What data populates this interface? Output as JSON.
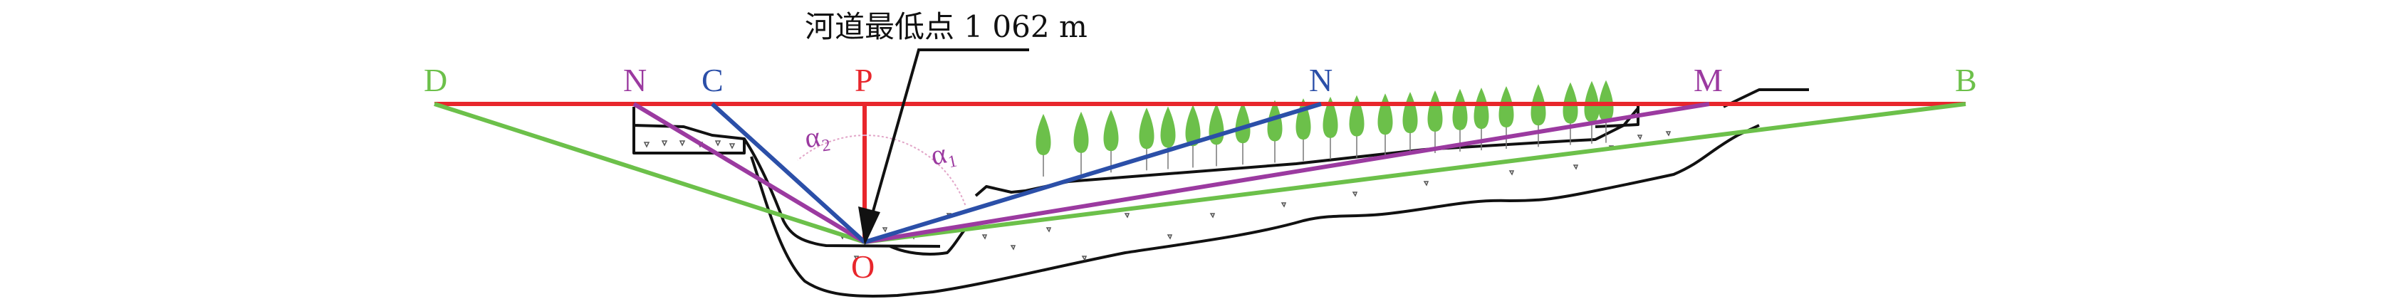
{
  "annotation": {
    "text": "河道最低点 1 062 m"
  },
  "points": {
    "D": "D",
    "N_left": "N",
    "C": "C",
    "P": "P",
    "N_right": "N",
    "M": "M",
    "B": "B",
    "O": "O"
  },
  "angles": {
    "alpha2": "α₂",
    "alpha1": "α₁"
  },
  "colors": {
    "horizon": "#e8262c",
    "green": "#6cc04a",
    "purple": "#9b3aa0",
    "blue": "#2b4fa8",
    "ground": "#111111",
    "tree": "#6cc04a",
    "arc": "#e2a6c8"
  },
  "icons": {
    "tree": "tree-icon",
    "arrow": "arrow-pointer"
  }
}
